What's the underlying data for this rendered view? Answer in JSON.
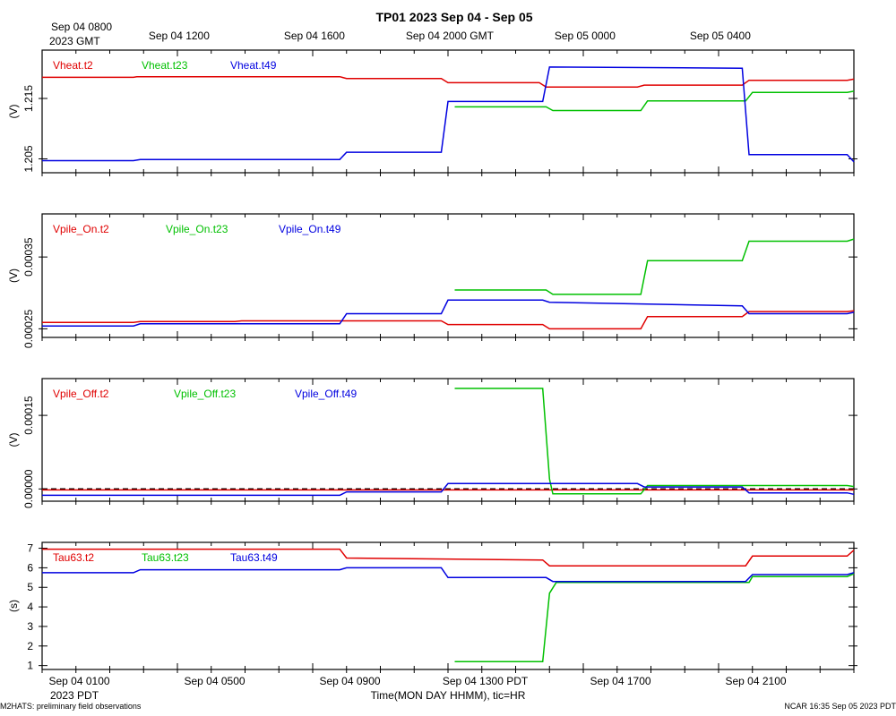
{
  "title": "TP01 2023 Sep 04 - Sep 05",
  "top_axis": {
    "first_label": "Sep 04 0800",
    "first_sub": "2023 GMT",
    "labels": [
      "Sep 04 1200",
      "Sep 04 1600",
      "Sep 04 2000 GMT",
      "Sep 05 0000",
      "Sep 05 0400"
    ]
  },
  "bottom_axis": {
    "labels": [
      "Sep 04 0100",
      "Sep 04 0500",
      "Sep 04 0900",
      "Sep 04 1300 PDT",
      "Sep 04 1700",
      "Sep 04 2100"
    ],
    "sub": "2023 PDT",
    "xlabel": "Time(MON DAY HHMM), tic=HR"
  },
  "footer_left": "M2HATS: preliminary field observations",
  "footer_right": "NCAR 16:35 Sep 05 2023 PDT",
  "colors": {
    "t2": "#e00000",
    "t23": "#00c000",
    "t49": "#0000e0",
    "axis": "#000000"
  },
  "chart_data": [
    {
      "type": "line",
      "name": "vheat",
      "ylabel": "(V)",
      "ylim": [
        1.2027,
        1.223
      ],
      "yticks": [
        1.205,
        1.215
      ],
      "ytick_labels": [
        "1.205",
        "1.215"
      ],
      "xlim": [
        0,
        24
      ],
      "series": [
        {
          "name": "Vheat.t2",
          "color": "#e00000",
          "points": [
            [
              0,
              1.2185
            ],
            [
              2.7,
              1.2185
            ],
            [
              2.8,
              1.2186
            ],
            [
              8.8,
              1.2186
            ],
            [
              9.0,
              1.2183
            ],
            [
              11.8,
              1.2183
            ],
            [
              12.0,
              1.2176
            ],
            [
              14.7,
              1.2176
            ],
            [
              14.9,
              1.2169
            ],
            [
              17.6,
              1.2169
            ],
            [
              17.8,
              1.2172
            ],
            [
              20.7,
              1.2172
            ],
            [
              20.9,
              1.218
            ],
            [
              23.8,
              1.218
            ],
            [
              24,
              1.2182
            ]
          ]
        },
        {
          "name": "Vheat.t23",
          "color": "#00c000",
          "points": [
            [
              12.2,
              1.2136
            ],
            [
              14.9,
              1.2136
            ],
            [
              15.1,
              1.213
            ],
            [
              17.7,
              1.213
            ],
            [
              17.9,
              1.2146
            ],
            [
              20.8,
              1.2146
            ],
            [
              21.0,
              1.216
            ],
            [
              23.8,
              1.216
            ],
            [
              24,
              1.2162
            ]
          ]
        },
        {
          "name": "Vheat.t49",
          "color": "#0000e0",
          "points": [
            [
              0,
              1.2047
            ],
            [
              2.7,
              1.2047
            ],
            [
              2.9,
              1.2049
            ],
            [
              8.8,
              1.2049
            ],
            [
              9.0,
              1.2061
            ],
            [
              11.8,
              1.2061
            ],
            [
              12.0,
              1.2145
            ],
            [
              14.8,
              1.2145
            ],
            [
              15.0,
              1.2202
            ],
            [
              20.7,
              1.22
            ],
            [
              20.9,
              1.2057
            ],
            [
              23.8,
              1.2057
            ],
            [
              24,
              1.2045
            ]
          ]
        }
      ]
    },
    {
      "type": "line",
      "name": "vpile_on",
      "ylabel": "(V)",
      "ylim": [
        0.000238,
        0.00041
      ],
      "yticks": [
        0.00025,
        0.00035
      ],
      "ytick_labels": [
        "0.00025",
        "0.00035"
      ],
      "xlim": [
        0,
        24
      ],
      "series": [
        {
          "name": "Vpile_On.t2",
          "color": "#e00000",
          "points": [
            [
              0,
              0.000259
            ],
            [
              2.7,
              0.000259
            ],
            [
              2.9,
              0.00026
            ],
            [
              5.7,
              0.00026
            ],
            [
              5.9,
              0.000261
            ],
            [
              11.8,
              0.000261
            ],
            [
              12.0,
              0.000256
            ],
            [
              14.8,
              0.000256
            ],
            [
              15.0,
              0.00025
            ],
            [
              17.7,
              0.00025
            ],
            [
              17.9,
              0.000267
            ],
            [
              20.7,
              0.000267
            ],
            [
              20.9,
              0.000274
            ],
            [
              23.8,
              0.000274
            ],
            [
              24,
              0.000275
            ]
          ]
        },
        {
          "name": "Vpile_On.t23",
          "color": "#00c000",
          "points": [
            [
              12.2,
              0.000304
            ],
            [
              14.9,
              0.000304
            ],
            [
              15.1,
              0.000298
            ],
            [
              17.7,
              0.000298
            ],
            [
              17.9,
              0.000345
            ],
            [
              20.7,
              0.000345
            ],
            [
              20.9,
              0.000372
            ],
            [
              23.8,
              0.000372
            ],
            [
              24,
              0.000375
            ]
          ]
        },
        {
          "name": "Vpile_On.t49",
          "color": "#0000e0",
          "points": [
            [
              0,
              0.000254
            ],
            [
              2.7,
              0.000254
            ],
            [
              2.9,
              0.000257
            ],
            [
              8.8,
              0.000257
            ],
            [
              9.0,
              0.000271
            ],
            [
              11.8,
              0.000271
            ],
            [
              12.0,
              0.00029
            ],
            [
              14.8,
              0.00029
            ],
            [
              15.0,
              0.000287
            ],
            [
              20.7,
              0.000282
            ],
            [
              20.9,
              0.000271
            ],
            [
              23.8,
              0.000271
            ],
            [
              24,
              0.000273
            ]
          ]
        }
      ]
    },
    {
      "type": "line",
      "name": "vpile_off",
      "ylabel": "(V)",
      "ylim": [
        -2.5e-05,
        0.000225
      ],
      "yticks": [
        0.0,
        0.00015
      ],
      "ytick_labels": [
        "0.00000",
        "0.00015"
      ],
      "zero_line": true,
      "xlim": [
        0,
        24
      ],
      "series": [
        {
          "name": "Vpile_Off.t2",
          "color": "#e00000",
          "points": [
            [
              0,
              -2e-06
            ],
            [
              24,
              -2e-06
            ]
          ]
        },
        {
          "name": "Vpile_Off.t23",
          "color": "#00c000",
          "points": [
            [
              12.2,
              0.000205
            ],
            [
              14.8,
              0.000205
            ],
            [
              15.0,
              2e-05
            ],
            [
              15.1,
              -1e-05
            ],
            [
              17.7,
              -1e-05
            ],
            [
              17.9,
              7e-06
            ],
            [
              23.8,
              7e-06
            ],
            [
              24,
              5e-06
            ]
          ]
        },
        {
          "name": "Vpile_Off.t49",
          "color": "#0000e0",
          "points": [
            [
              0,
              -1.3e-05
            ],
            [
              8.8,
              -1.3e-05
            ],
            [
              9.0,
              -6e-06
            ],
            [
              11.8,
              -6e-06
            ],
            [
              12.0,
              1.1e-05
            ],
            [
              17.6,
              1.1e-05
            ],
            [
              17.8,
              4e-06
            ],
            [
              20.7,
              4e-06
            ],
            [
              20.9,
              -8e-06
            ],
            [
              23.8,
              -8e-06
            ],
            [
              24,
              -1.1e-05
            ]
          ]
        }
      ]
    },
    {
      "type": "line",
      "name": "tau63",
      "ylabel": "(s)",
      "ylim": [
        0.8,
        7.3
      ],
      "yticks": [
        1,
        2,
        3,
        4,
        5,
        6,
        7
      ],
      "ytick_labels": [
        "1",
        "2",
        "3",
        "4",
        "5",
        "6",
        "7"
      ],
      "xlim": [
        0,
        24
      ],
      "series": [
        {
          "name": "Tau63.t2",
          "color": "#e00000",
          "points": [
            [
              0,
              6.95
            ],
            [
              8.8,
              6.95
            ],
            [
              9.0,
              6.5
            ],
            [
              14.8,
              6.4
            ],
            [
              15.0,
              6.1
            ],
            [
              20.8,
              6.1
            ],
            [
              21.0,
              6.6
            ],
            [
              23.8,
              6.6
            ],
            [
              24,
              6.9
            ]
          ]
        },
        {
          "name": "Tau63.t23",
          "color": "#00c000",
          "points": [
            [
              12.2,
              1.2
            ],
            [
              14.8,
              1.2
            ],
            [
              15.0,
              4.7
            ],
            [
              15.2,
              5.25
            ],
            [
              17.9,
              5.25
            ],
            [
              20.9,
              5.25
            ],
            [
              21.0,
              5.55
            ],
            [
              23.8,
              5.55
            ],
            [
              24,
              5.7
            ]
          ]
        },
        {
          "name": "Tau63.t49",
          "color": "#0000e0",
          "points": [
            [
              0,
              5.75
            ],
            [
              2.7,
              5.75
            ],
            [
              2.9,
              5.9
            ],
            [
              8.8,
              5.9
            ],
            [
              9.0,
              6.0
            ],
            [
              11.8,
              6.0
            ],
            [
              12.0,
              5.5
            ],
            [
              14.9,
              5.5
            ],
            [
              15.1,
              5.3
            ],
            [
              20.8,
              5.3
            ],
            [
              21.0,
              5.65
            ],
            [
              23.8,
              5.65
            ],
            [
              24,
              5.75
            ]
          ]
        }
      ]
    }
  ]
}
